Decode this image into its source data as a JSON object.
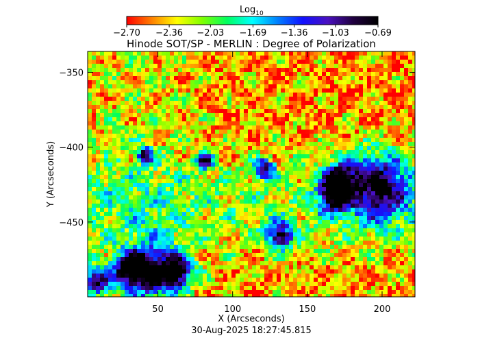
{
  "chart_data": {
    "type": "heatmap",
    "title": "Hinode SOT/SP - MERLIN : Degree of Polarization",
    "xlabel": "X (Arcseconds)",
    "ylabel": "Y (Arcseconds)",
    "timestamp": "30-Aug-2025 18:27:45.815",
    "xlim": [
      3,
      222
    ],
    "ylim": [
      -500,
      -336
    ],
    "x_ticks": [
      50,
      100,
      150,
      200
    ],
    "x_tick_labels": [
      "50",
      "100",
      "150",
      "200"
    ],
    "y_ticks": [
      -350,
      -400,
      -450
    ],
    "y_tick_labels": [
      "−350",
      "−400",
      "−450"
    ],
    "colorbar": {
      "label": "Log",
      "label_sub": "10",
      "min": -2.7,
      "max": -0.69,
      "ticks": [
        -2.7,
        -2.36,
        -2.03,
        -1.69,
        -1.36,
        -1.03,
        -0.69
      ],
      "tick_labels": [
        "−2.70",
        "−2.36",
        "−2.03",
        "−1.69",
        "−1.36",
        "−1.03",
        "−0.69"
      ],
      "colormap": "rainbow (red-yellow-green-cyan-blue-purple-black)",
      "colors": [
        "#ff0000",
        "#ff8000",
        "#ffff00",
        "#80ff00",
        "#00ff60",
        "#00ffff",
        "#0080ff",
        "#1010ff",
        "#4a10c0",
        "#200040",
        "#000000"
      ]
    },
    "features": [
      {
        "x": 195,
        "y": -425,
        "r": 18
      },
      {
        "x": 170,
        "y": -420,
        "r": 8
      },
      {
        "x": 166,
        "y": -432,
        "r": 8
      },
      {
        "x": 45,
        "y": -482,
        "r": 14
      },
      {
        "x": 30,
        "y": -480,
        "r": 8
      },
      {
        "x": 62,
        "y": -482,
        "r": 8
      },
      {
        "x": 8,
        "y": -488,
        "r": 7
      },
      {
        "x": 130,
        "y": -458,
        "r": 7
      },
      {
        "x": 120,
        "y": -413,
        "r": 5
      },
      {
        "x": 80,
        "y": -408,
        "r": 4
      },
      {
        "x": 40,
        "y": -404,
        "r": 4
      }
    ]
  }
}
